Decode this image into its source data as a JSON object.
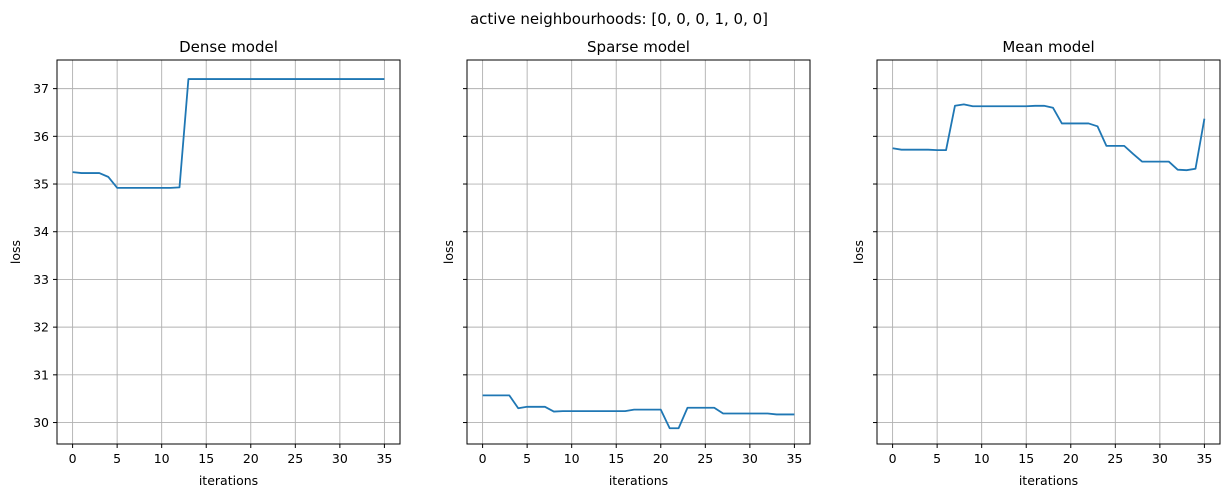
{
  "figure": {
    "suptitle": "active neighbourhoods: [0, 0, 0, 1, 0, 0]",
    "line_color": "#1f77b4",
    "grid_color": "#b0b0b0"
  },
  "chart_data": [
    {
      "type": "line",
      "title": "Dense model",
      "xlabel": "iterations",
      "ylabel": "loss",
      "xlim": [
        -1.75,
        36.75
      ],
      "ylim": [
        29.55,
        37.6
      ],
      "xticks": [
        0,
        5,
        10,
        15,
        20,
        25,
        30,
        35
      ],
      "yticks": [
        30,
        31,
        32,
        33,
        34,
        35,
        36,
        37
      ],
      "show_yticklabels": true,
      "grid": true,
      "series": [
        {
          "x": [
            0,
            1,
            2,
            3,
            4,
            5,
            6,
            7,
            8,
            9,
            10,
            11,
            12,
            13,
            14,
            15,
            16,
            17,
            18,
            19,
            20,
            21,
            22,
            23,
            24,
            25,
            26,
            27,
            28,
            29,
            30,
            31,
            32,
            33,
            34,
            35
          ],
          "y": [
            35.25,
            35.23,
            35.23,
            35.23,
            35.15,
            34.92,
            34.92,
            34.92,
            34.92,
            34.92,
            34.92,
            34.92,
            34.93,
            37.2,
            37.2,
            37.2,
            37.2,
            37.2,
            37.2,
            37.2,
            37.2,
            37.2,
            37.2,
            37.2,
            37.2,
            37.2,
            37.2,
            37.2,
            37.2,
            37.2,
            37.2,
            37.2,
            37.2,
            37.2,
            37.2,
            37.2
          ]
        }
      ]
    },
    {
      "type": "line",
      "title": "Sparse model",
      "xlabel": "iterations",
      "ylabel": "loss",
      "xlim": [
        -1.75,
        36.75
      ],
      "ylim": [
        29.55,
        37.6
      ],
      "xticks": [
        0,
        5,
        10,
        15,
        20,
        25,
        30,
        35
      ],
      "yticks": [
        30,
        31,
        32,
        33,
        34,
        35,
        36,
        37
      ],
      "show_yticklabels": false,
      "grid": true,
      "series": [
        {
          "x": [
            0,
            1,
            2,
            3,
            4,
            5,
            6,
            7,
            8,
            9,
            10,
            11,
            12,
            13,
            14,
            15,
            16,
            17,
            18,
            19,
            20,
            21,
            22,
            23,
            24,
            25,
            26,
            27,
            28,
            29,
            30,
            31,
            32,
            33,
            34,
            35
          ],
          "y": [
            30.57,
            30.57,
            30.57,
            30.57,
            30.3,
            30.33,
            30.33,
            30.33,
            30.23,
            30.24,
            30.24,
            30.24,
            30.24,
            30.24,
            30.24,
            30.24,
            30.24,
            30.27,
            30.27,
            30.27,
            30.27,
            29.88,
            29.88,
            30.31,
            30.31,
            30.31,
            30.31,
            30.19,
            30.19,
            30.19,
            30.19,
            30.19,
            30.19,
            30.17,
            30.17,
            30.17
          ]
        }
      ]
    },
    {
      "type": "line",
      "title": "Mean model",
      "xlabel": "iterations",
      "ylabel": "loss",
      "xlim": [
        -1.75,
        36.75
      ],
      "ylim": [
        29.55,
        37.6
      ],
      "xticks": [
        0,
        5,
        10,
        15,
        20,
        25,
        30,
        35
      ],
      "yticks": [
        30,
        31,
        32,
        33,
        34,
        35,
        36,
        37
      ],
      "show_yticklabels": false,
      "grid": true,
      "series": [
        {
          "x": [
            0,
            1,
            2,
            3,
            4,
            5,
            6,
            7,
            8,
            9,
            10,
            11,
            12,
            13,
            14,
            15,
            16,
            17,
            18,
            19,
            20,
            21,
            22,
            23,
            24,
            25,
            26,
            27,
            28,
            29,
            30,
            31,
            32,
            33,
            34,
            35
          ],
          "y": [
            35.75,
            35.72,
            35.72,
            35.72,
            35.72,
            35.71,
            35.71,
            36.64,
            36.67,
            36.63,
            36.63,
            36.63,
            36.63,
            36.63,
            36.63,
            36.63,
            36.64,
            36.64,
            36.6,
            36.27,
            36.27,
            36.27,
            36.27,
            36.21,
            35.8,
            35.8,
            35.8,
            35.63,
            35.47,
            35.47,
            35.47,
            35.47,
            35.3,
            35.29,
            35.32,
            36.37
          ]
        }
      ]
    }
  ]
}
